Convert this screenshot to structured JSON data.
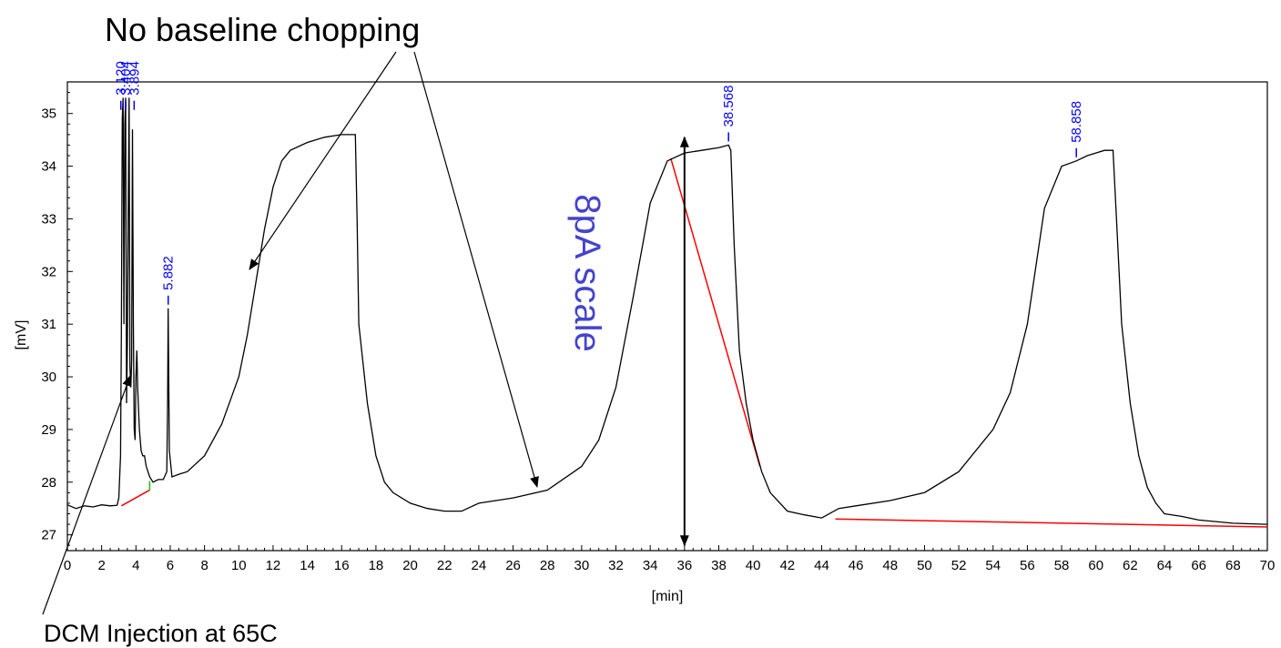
{
  "chart_data": {
    "type": "line",
    "xlabel": "[min]",
    "ylabel": "[mV]",
    "xlim": [
      0,
      70
    ],
    "ylim": [
      26.7,
      35.6
    ],
    "xticks": [
      0,
      2,
      4,
      6,
      8,
      10,
      12,
      14,
      16,
      18,
      20,
      22,
      24,
      26,
      28,
      30,
      32,
      34,
      36,
      38,
      40,
      42,
      44,
      46,
      48,
      50,
      52,
      54,
      56,
      58,
      60,
      62,
      64,
      66,
      68,
      70
    ],
    "yticks": [
      27,
      28,
      29,
      30,
      31,
      32,
      33,
      34,
      35
    ],
    "grid": false,
    "colors": {
      "trace": "#000000",
      "peak_labels": "#0000ff",
      "baseline": "#ff0000",
      "baseline_marker": "#00cc00",
      "scale_text": "#4444cc"
    },
    "series": [
      {
        "x": [
          0,
          0.5,
          1,
          1.5,
          2,
          2.5,
          2.9,
          3.0,
          3.1,
          3.15,
          3.2,
          3.25,
          3.3,
          3.35,
          3.4,
          3.45,
          3.5,
          3.55,
          3.6,
          3.65,
          3.7,
          3.75,
          3.8,
          3.85,
          3.9,
          3.95,
          4.0,
          4.05,
          4.1,
          4.2,
          4.3,
          4.4,
          4.5,
          4.6,
          4.7,
          4.8,
          5.0,
          5.3,
          5.6,
          5.8,
          5.85,
          5.882,
          5.95,
          6.1,
          6.5,
          7,
          8,
          9,
          10,
          10.5,
          11,
          11.5,
          12,
          12.5,
          13,
          14,
          15,
          16,
          16.8,
          16.9,
          17,
          17.5,
          18,
          18.5,
          19,
          20,
          21,
          22,
          23,
          24,
          26,
          28,
          30,
          31,
          32,
          33,
          34,
          35,
          36,
          37,
          38,
          38.568,
          38.7,
          38.9,
          39.2,
          39.6,
          40,
          40.5,
          41,
          42,
          43,
          44,
          45,
          46,
          48,
          50,
          52,
          54,
          55,
          56,
          57,
          58,
          58.858,
          59.5,
          60,
          60.5,
          61,
          61.2,
          61.5,
          62,
          62.5,
          63,
          63.5,
          64,
          65,
          66,
          68,
          70
        ],
        "y": [
          27.57,
          27.5,
          27.55,
          27.53,
          27.57,
          27.55,
          27.56,
          27.7,
          28.5,
          30.8,
          34.9,
          35.3,
          31.0,
          34.8,
          35.3,
          29.5,
          30.6,
          33.0,
          35.3,
          30.2,
          29.8,
          30.3,
          34.7,
          31.0,
          29.0,
          28.8,
          30.0,
          30.5,
          29.8,
          29.0,
          28.6,
          28.5,
          28.5,
          28.3,
          28.2,
          28.1,
          28.0,
          28.05,
          28.05,
          28.2,
          29.5,
          31.3,
          28.6,
          28.1,
          28.15,
          28.2,
          28.5,
          29.1,
          30.0,
          30.8,
          31.8,
          32.8,
          33.6,
          34.1,
          34.3,
          34.45,
          34.55,
          34.6,
          34.6,
          33.0,
          31.0,
          29.5,
          28.5,
          28.0,
          27.8,
          27.6,
          27.5,
          27.45,
          27.45,
          27.6,
          27.7,
          27.85,
          28.3,
          28.8,
          29.8,
          31.5,
          33.3,
          34.1,
          34.25,
          34.3,
          34.35,
          34.4,
          34.3,
          32.5,
          30.5,
          29.5,
          28.8,
          28.2,
          27.8,
          27.45,
          27.38,
          27.32,
          27.5,
          27.55,
          27.65,
          27.8,
          28.2,
          29.0,
          29.7,
          31.0,
          33.2,
          34.0,
          34.1,
          34.2,
          34.25,
          34.3,
          34.3,
          33.0,
          31.0,
          29.5,
          28.5,
          27.9,
          27.6,
          27.4,
          27.35,
          27.28,
          27.22,
          27.2
        ]
      }
    ],
    "peak_labels": [
      {
        "label": "3.120",
        "x": 3.12,
        "y": 35.0
      },
      {
        "label": "3.404",
        "x": 3.404,
        "y": 35.0
      },
      {
        "label": "3.894",
        "x": 3.894,
        "y": 35.0
      },
      {
        "label": "5.882",
        "x": 5.882,
        "y": 31.3
      },
      {
        "label": "38.568",
        "x": 38.568,
        "y": 34.4
      },
      {
        "label": "58.858",
        "x": 58.858,
        "y": 34.1
      }
    ],
    "baselines": [
      {
        "x": [
          3.15,
          4.8
        ],
        "y": [
          27.55,
          27.85
        ]
      },
      {
        "x": [
          35.2,
          40.4
        ],
        "y": [
          34.15,
          28.3
        ]
      },
      {
        "x": [
          44.8,
          70
        ],
        "y": [
          27.3,
          27.15
        ]
      }
    ],
    "baseline_markers": [
      {
        "x": [
          4.8,
          4.8
        ],
        "y": [
          27.85,
          28.02
        ]
      }
    ],
    "scale_arrow": {
      "x": 36,
      "y": [
        26.8,
        34.55
      ]
    },
    "annotations": {
      "baseline_note": "No baseline chopping",
      "injection_note": "DCM Injection at 65C",
      "scale_note": "8pA scale"
    }
  }
}
